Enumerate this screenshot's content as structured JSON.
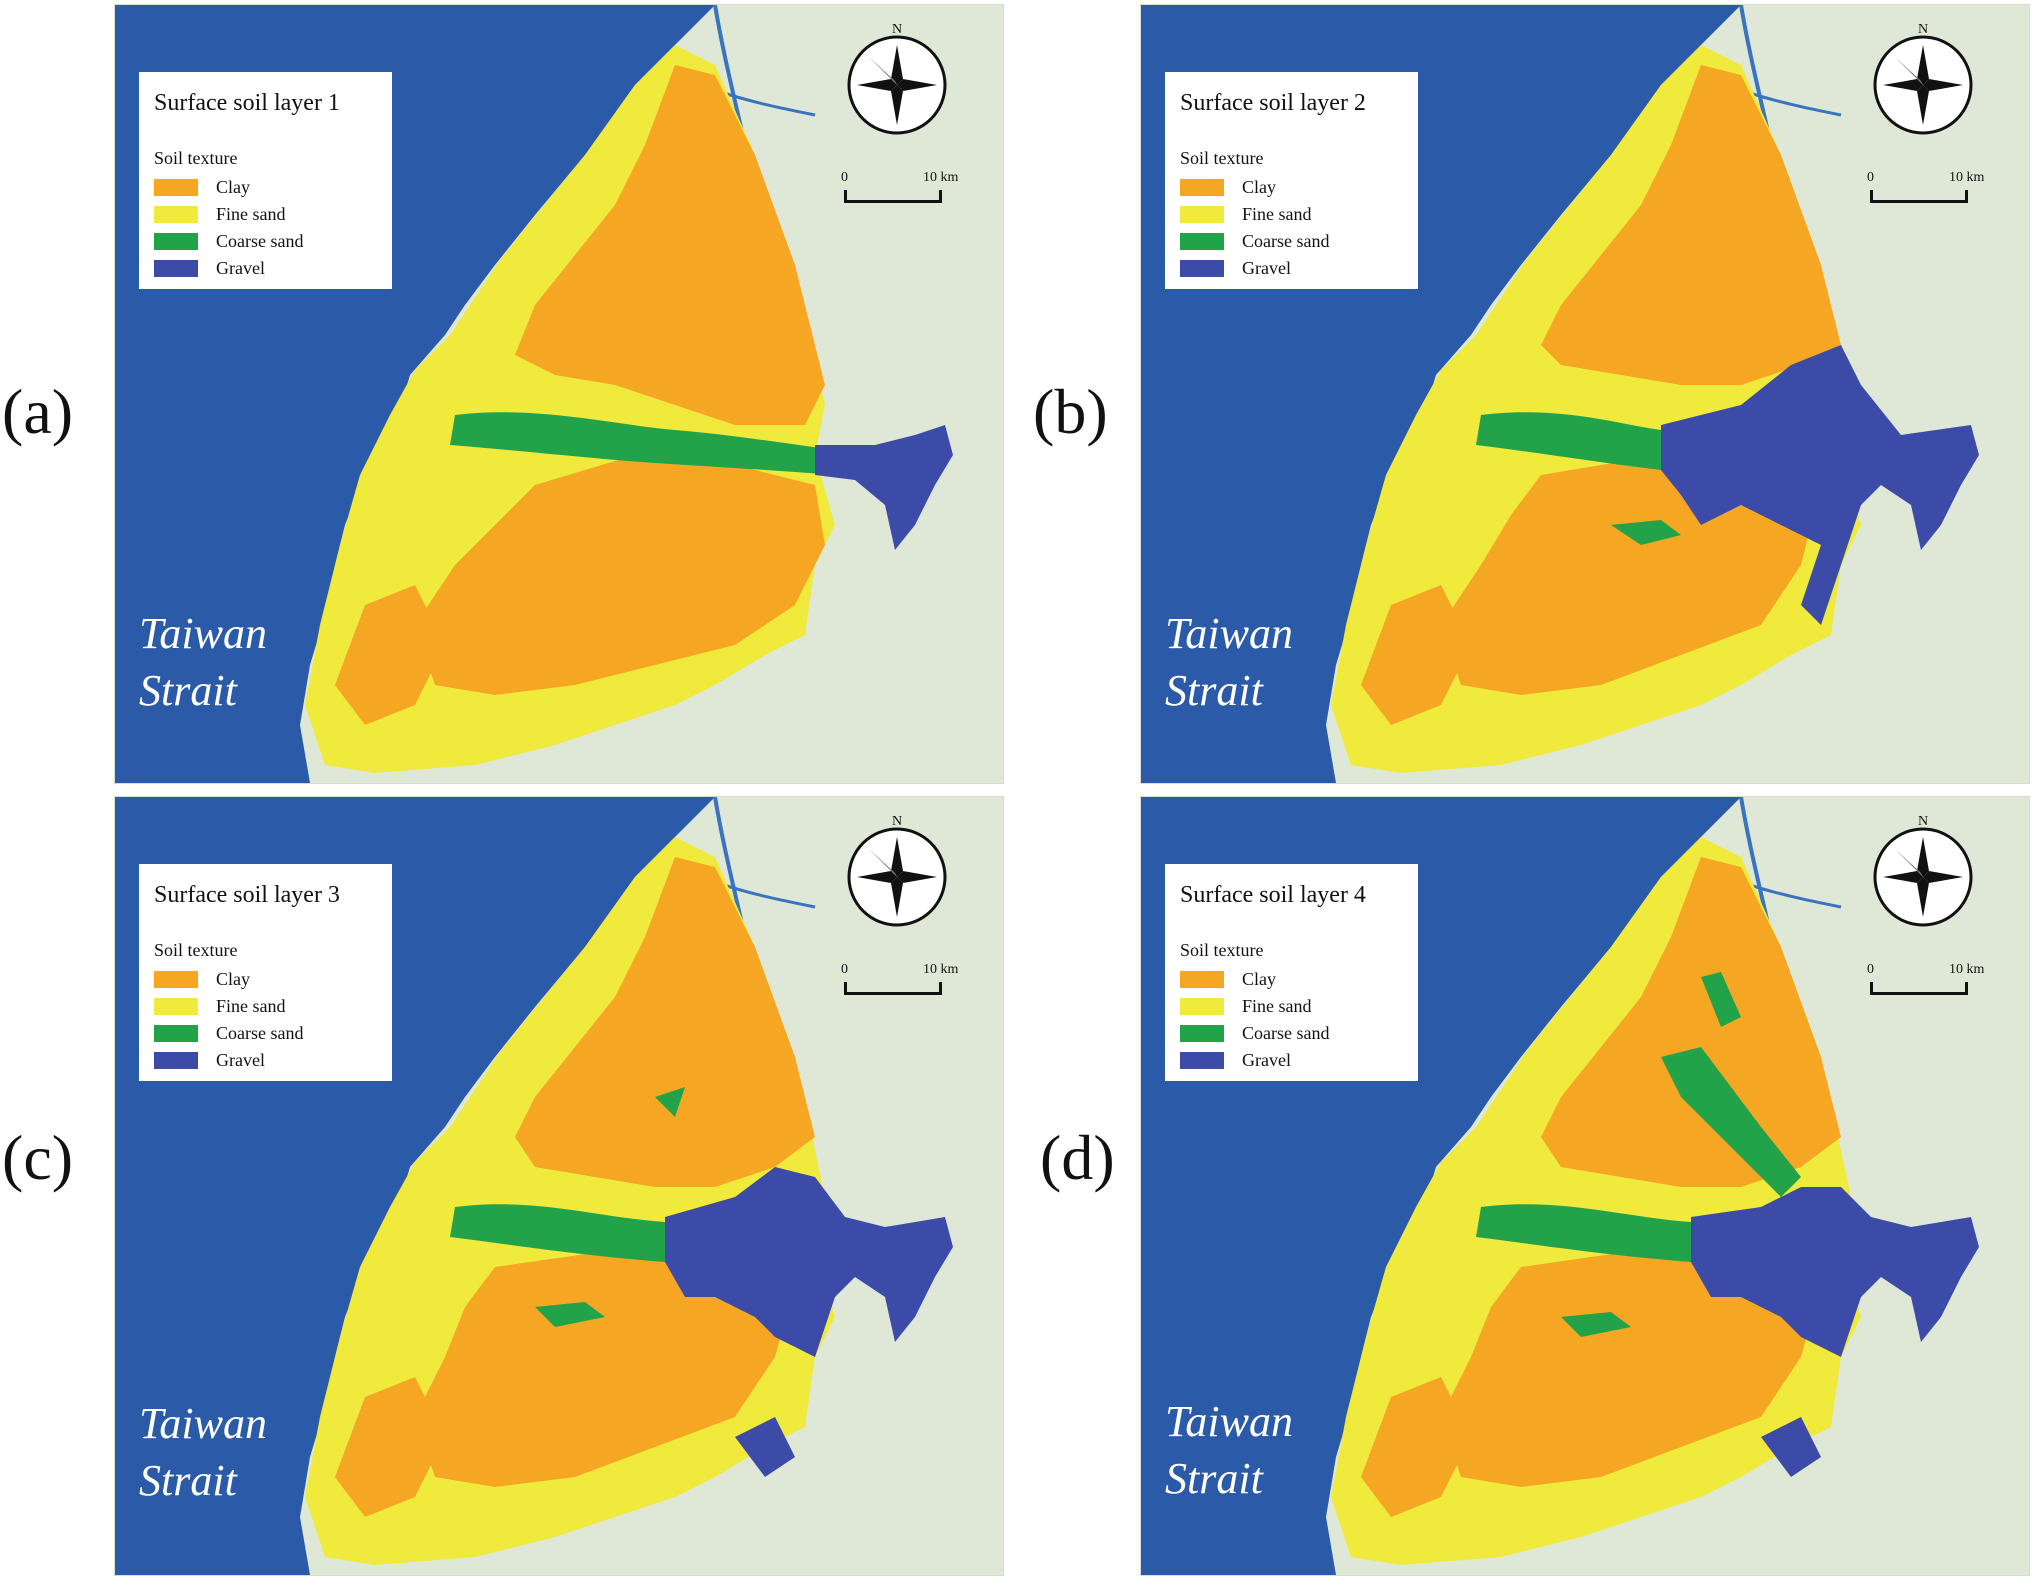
{
  "panels": [
    {
      "letter": "(a)",
      "title": "Surface soil layer 1"
    },
    {
      "letter": "(b)",
      "title": "Surface soil layer 2"
    },
    {
      "letter": "(c)",
      "title": "Surface soil layer 3"
    },
    {
      "letter": "(d)",
      "title": "Surface soil layer 4"
    }
  ],
  "legend": {
    "subtitle": "Soil texture",
    "items": [
      {
        "label": "Clay",
        "color": "#f5a623"
      },
      {
        "label": "Fine sand",
        "color": "#f0ea3c"
      },
      {
        "label": "Coarse sand",
        "color": "#22a34a"
      },
      {
        "label": "Gravel",
        "color": "#3d4ba8"
      }
    ]
  },
  "sea_label": {
    "line1": "Taiwan",
    "line2": "Strait"
  },
  "compass": {
    "north": "N"
  },
  "scale_bar": {
    "start": "0",
    "end": "10 km"
  },
  "colors": {
    "sea": "#2b5ba8",
    "land": "#dfe8d6"
  }
}
